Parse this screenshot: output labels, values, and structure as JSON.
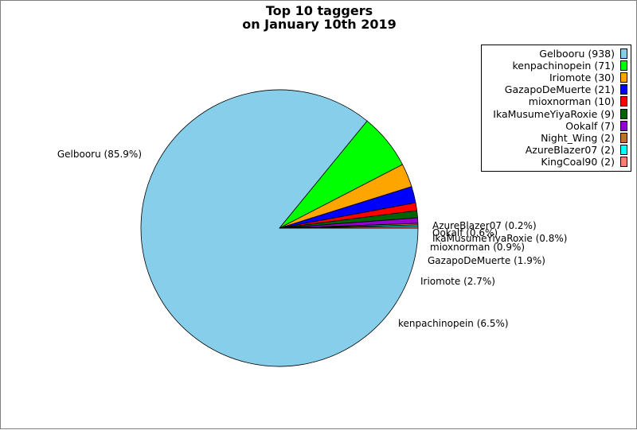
{
  "chart_data": {
    "type": "pie",
    "title_lines": [
      "Top 10 taggers",
      "on January 10th 2019"
    ],
    "slices": [
      {
        "name": "Gelbooru",
        "value": 938,
        "legend": "Gelbooru (938)",
        "label": "Gelbooru (85.9%)",
        "color": "#87ceeb"
      },
      {
        "name": "kenpachinopein",
        "value": 71,
        "legend": "kenpachinopein (71)",
        "label": "kenpachinopein (6.5%)",
        "color": "#00ff00"
      },
      {
        "name": "Iriomote",
        "value": 30,
        "legend": "Iriomote (30)",
        "label": "Iriomote (2.7%)",
        "color": "#ffa500"
      },
      {
        "name": "GazapoDeMuerte",
        "value": 21,
        "legend": "GazapoDeMuerte (21)",
        "label": "GazapoDeMuerte (1.9%)",
        "color": "#0000ff"
      },
      {
        "name": "mioxnorman",
        "value": 10,
        "legend": "mioxnorman (10)",
        "label": "mioxnorman (0.9%)",
        "color": "#ff0000"
      },
      {
        "name": "IkaMusumeYiyaRoxie",
        "value": 9,
        "legend": "IkaMusumeYiyaRoxie (9)",
        "label": "IkaMusumeYiyaRoxie (0.8%)",
        "color": "#006400"
      },
      {
        "name": "Ookalf",
        "value": 7,
        "legend": "Ookalf (7)",
        "label": "Ookalf (0.6%)",
        "color": "#9400d3"
      },
      {
        "name": "Night_Wing",
        "value": 2,
        "legend": "Night_Wing (2)",
        "label": "",
        "color": "#b8732e"
      },
      {
        "name": "AzureBlazer07",
        "value": 2,
        "legend": "AzureBlazer07 (2)",
        "label": "AzureBlazer07 (0.2%)",
        "color": "#00ffff"
      },
      {
        "name": "KingCoal90",
        "value": 2,
        "legend": "KingCoal90 (2)",
        "label": "",
        "color": "#fa8072"
      }
    ],
    "start_angle_deg": 0,
    "direction": "clockwise",
    "legend_position": "top-right"
  }
}
